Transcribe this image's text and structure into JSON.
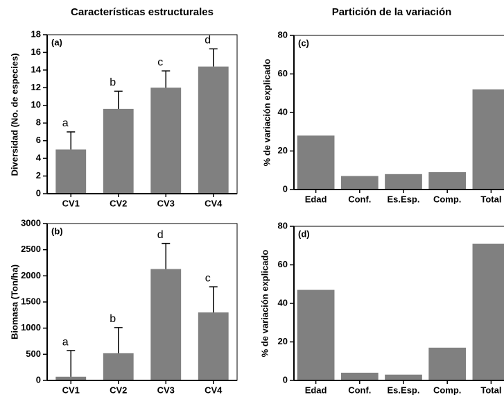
{
  "chart_data": [
    {
      "type": "bar",
      "title": "Características estructurales",
      "panel": "(a)",
      "ylabel": "Diversidad (No. de especies)",
      "categories": [
        "CV1",
        "CV2",
        "CV3",
        "CV4"
      ],
      "values": [
        5.0,
        9.6,
        12.0,
        14.4
      ],
      "errors": [
        2.0,
        2.0,
        1.9,
        2.0
      ],
      "annotations": [
        "a",
        "b",
        "c",
        "d"
      ],
      "color": "#808080",
      "ylim": [
        0,
        18
      ],
      "yticks": [
        0,
        2,
        4,
        6,
        8,
        10,
        12,
        14,
        16,
        18
      ]
    },
    {
      "type": "bar",
      "panel": "(b)",
      "ylabel": "Biomasa (Ton/ha)",
      "categories": [
        "CV1",
        "CV2",
        "CV3",
        "CV4"
      ],
      "values": [
        70,
        520,
        2130,
        1300
      ],
      "errors": [
        500,
        490,
        490,
        490
      ],
      "annotations": [
        "a",
        "b",
        "d",
        "c"
      ],
      "color": "#808080",
      "ylim": [
        0,
        3000
      ],
      "yticks": [
        0,
        500,
        1000,
        1500,
        2000,
        2500,
        3000
      ]
    },
    {
      "type": "bar",
      "title": "Partición de la variación",
      "panel": "(c)",
      "ylabel": "% de variación explicado",
      "categories": [
        "Edad",
        "Conf.",
        "Es.Esp.",
        "Comp.",
        "Total"
      ],
      "values": [
        28,
        7,
        8,
        9,
        52
      ],
      "color": "#808080",
      "ylim": [
        0,
        80
      ],
      "yticks": [
        0,
        20,
        40,
        60,
        80
      ]
    },
    {
      "type": "bar",
      "panel": "(d)",
      "ylabel": "% de variación explicado",
      "categories": [
        "Edad",
        "Conf.",
        "Es.Esp.",
        "Comp.",
        "Total"
      ],
      "values": [
        47,
        4,
        3,
        17,
        71
      ],
      "color": "#808080",
      "ylim": [
        0,
        80
      ],
      "yticks": [
        0,
        20,
        40,
        60,
        80
      ]
    }
  ]
}
